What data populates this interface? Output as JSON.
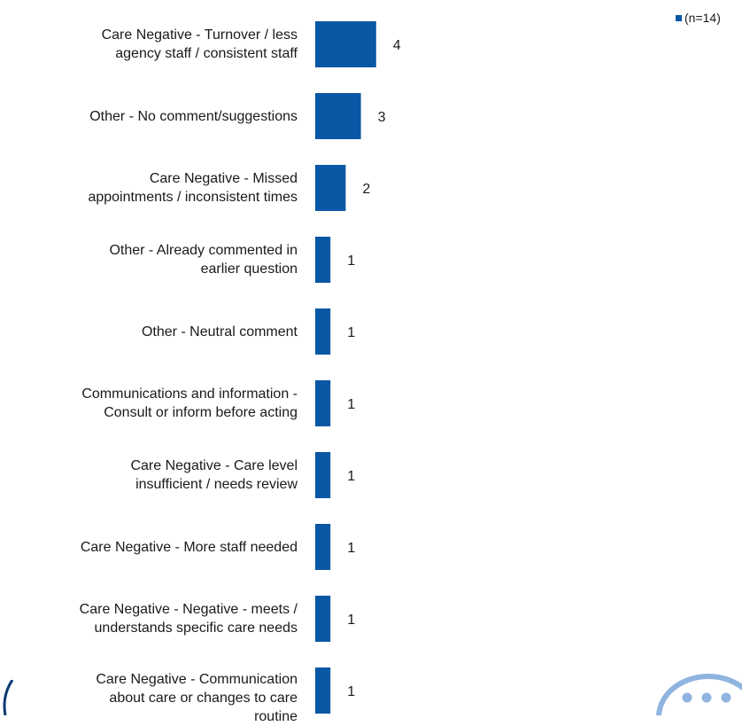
{
  "chart_data": {
    "type": "bar",
    "orientation": "horizontal",
    "categories": [
      "Care Negative - Turnover / less agency staff / consistent staff",
      "Other - No comment/suggestions",
      "Care Negative - Missed appointments / inconsistent times",
      "Other - Already commented in earlier question",
      "Other - Neutral comment",
      "Communications and information - Consult or inform before acting",
      "Care Negative - Care level insufficient / needs review",
      "Care Negative - More staff needed",
      "Care Negative - Negative - meets / understands specific care needs",
      "Care Negative - Communication about care or changes to care routine"
    ],
    "label_lines": [
      [
        "Care Negative - Turnover / less",
        "agency staff / consistent staff"
      ],
      [
        "Other - No comment/suggestions"
      ],
      [
        "Care Negative - Missed",
        "appointments / inconsistent times"
      ],
      [
        "Other - Already commented in",
        "earlier question"
      ],
      [
        "Other - Neutral comment"
      ],
      [
        "Communications and information -",
        "Consult or inform before acting"
      ],
      [
        "Care Negative - Care level",
        "insufficient / needs review"
      ],
      [
        "Care Negative - More staff needed"
      ],
      [
        "Care Negative - Negative - meets /",
        "understands specific care needs"
      ],
      [
        "Care Negative - Communication",
        "about care or changes to care",
        "routine"
      ]
    ],
    "series": [
      {
        "name": "(n=14)",
        "values": [
          4,
          3,
          2,
          1,
          1,
          1,
          1,
          1,
          1,
          1
        ]
      }
    ],
    "data_labels": [
      "4",
      "3",
      "2",
      "1",
      "1",
      "1",
      "1",
      "1",
      "1",
      "1"
    ],
    "xlim": [
      0,
      4
    ],
    "grid": false,
    "legend_position": "top-right",
    "bar_color": "#0a57a5"
  },
  "legend": {
    "label": "(n=14)",
    "color": "#0a57a5"
  },
  "decor": {
    "bubble_icon": "chat-bubble-icon",
    "bubble_color": "#8fb4df"
  }
}
